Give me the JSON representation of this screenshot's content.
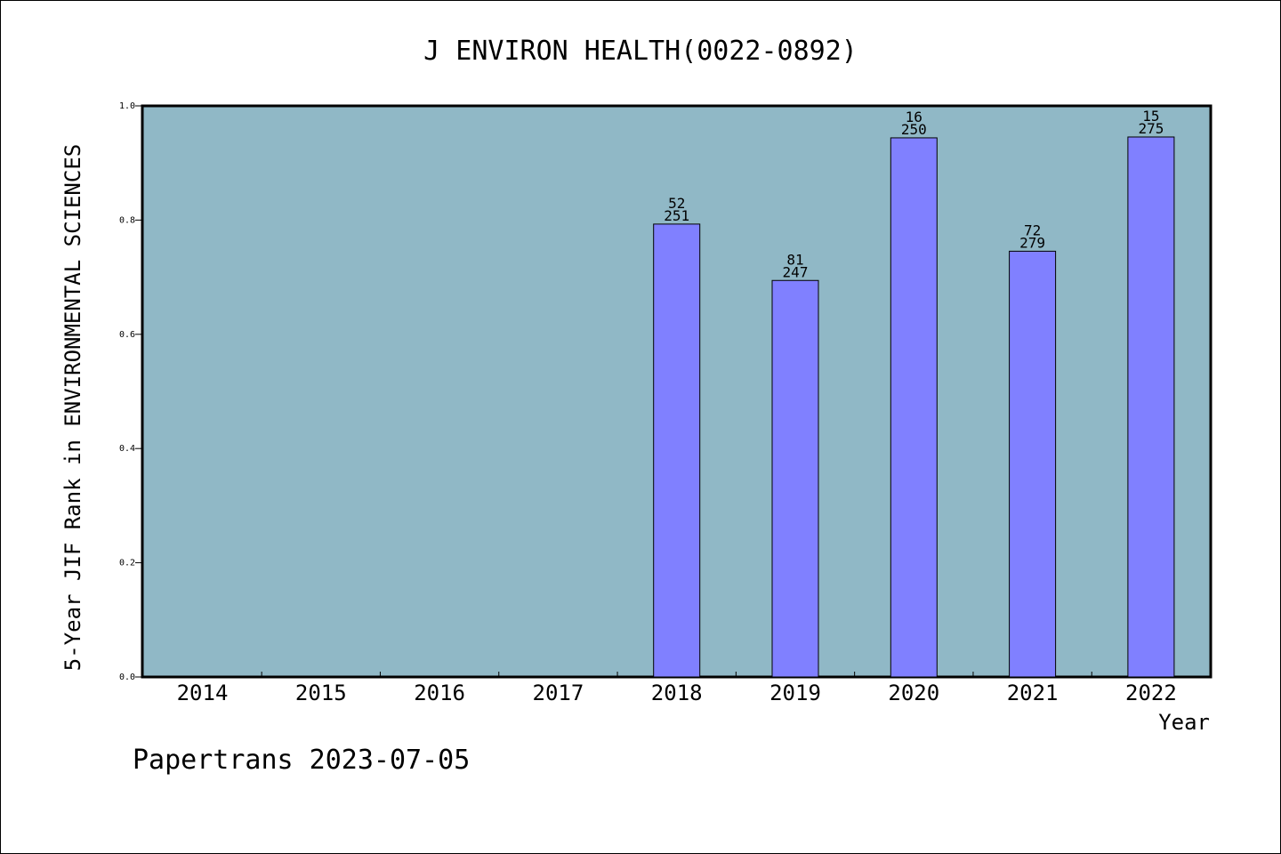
{
  "chart_data": {
    "type": "bar",
    "title": "J ENVIRON HEALTH(0022-0892)",
    "xlabel": "Year",
    "ylabel": "5-Year JIF Rank in ENVIRONMENTAL SCIENCES",
    "categories": [
      "2014",
      "2015",
      "2016",
      "2017",
      "2018",
      "2019",
      "2020",
      "2021",
      "2022"
    ],
    "values": [
      null,
      null,
      null,
      null,
      0.793,
      0.6943,
      0.944,
      0.7455,
      0.9455
    ],
    "rank_labels": [
      "",
      "",
      "",
      "",
      "52",
      "81",
      "16",
      "72",
      "15"
    ],
    "total_labels": [
      "",
      "",
      "",
      "",
      "251",
      "247",
      "250",
      "279",
      "275"
    ],
    "ylim": [
      0,
      1.0
    ],
    "yticks": [
      "0.0",
      "0.2",
      "0.4",
      "0.6",
      "0.8",
      "1.0"
    ],
    "grid": false,
    "colors": {
      "plot_background": "#90b8c6",
      "bar_fill": "#8080ff",
      "bar_stroke": "#000000"
    }
  },
  "footer": {
    "watermark": "Papertrans 2023-07-05"
  }
}
